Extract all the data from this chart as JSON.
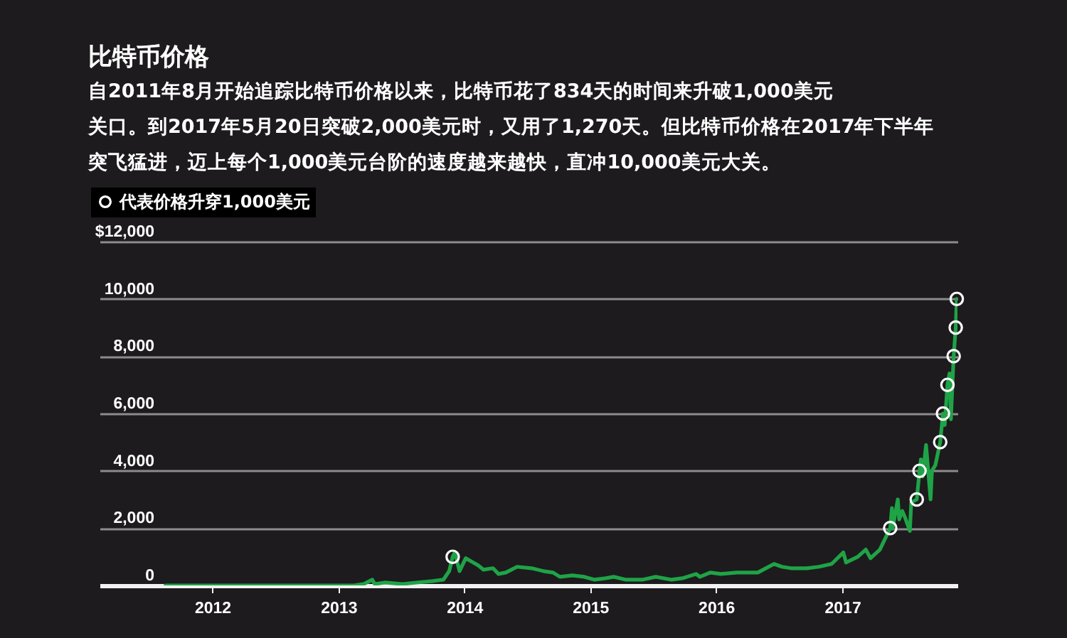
{
  "chart_data": {
    "type": "line",
    "title": "比特币价格",
    "subtitle": [
      "自2011年8月开始追踪比特币价格以来，比特币花了834天的时间来升破1,000美元",
      "关口。到2017年5月20日突破2,000美元时，又用了1,270天。但比特币价格在2017年下半年",
      "突飞猛进，迈上每个1,000美元台阶的速度越来越快，直冲10,000美元大关。"
    ],
    "xlim": [
      "2011-02-08",
      "2017-12-01"
    ],
    "xticks": [
      "2012",
      "2013",
      "2014",
      "2015",
      "2016",
      "2017"
    ],
    "ylim": [
      0,
      12000
    ],
    "yticks": [
      0,
      {
        "value": 2000,
        "label": "2,000"
      },
      {
        "value": 4000,
        "label": "4,000"
      },
      {
        "value": 6000,
        "label": "6,000"
      },
      {
        "value": 8000,
        "label": "8,000"
      },
      {
        "value": 10000,
        "label": "10,000"
      },
      {
        "value": 12000,
        "label": "$12,000"
      }
    ],
    "grid": "y",
    "legend": "top left",
    "series": [
      {
        "color": "#1fa347",
        "line_style": "solid",
        "x": [
          "2011-08-18",
          "2011-09-15",
          "2011-11-15",
          "2012-01-15",
          "2012-04-15",
          "2012-06-15",
          "2012-08-15",
          "2012-10-15",
          "2012-12-15",
          "2013-02-15",
          "2013-03-15",
          "2013-04-09",
          "2013-04-16",
          "2013-05-15",
          "2013-07-05",
          "2013-08-15",
          "2013-10-01",
          "2013-11-01",
          "2013-11-18",
          "2013-11-28",
          "2013-12-04",
          "2013-12-18",
          "2014-01-05",
          "2014-02-10",
          "2014-02-25",
          "2014-03-25",
          "2014-04-10",
          "2014-05-01",
          "2014-06-03",
          "2014-07-15",
          "2014-08-18",
          "2014-09-15",
          "2014-10-05",
          "2014-11-10",
          "2014-12-15",
          "2015-01-14",
          "2015-02-15",
          "2015-03-10",
          "2015-04-15",
          "2015-06-01",
          "2015-07-10",
          "2015-08-25",
          "2015-09-25",
          "2015-11-04",
          "2015-11-15",
          "2015-12-15",
          "2016-01-15",
          "2016-03-01",
          "2016-05-01",
          "2016-06-17",
          "2016-07-10",
          "2016-08-05",
          "2016-09-20",
          "2016-10-25",
          "2016-12-01",
          "2017-01-04",
          "2017-01-12",
          "2017-02-15",
          "2017-03-10",
          "2017-03-24",
          "2017-04-20",
          "2017-05-20",
          "2017-05-25",
          "2017-05-27",
          "2017-06-11",
          "2017-06-15",
          "2017-06-24",
          "2017-07-01",
          "2017-07-16",
          "2017-07-20",
          "2017-08-05",
          "2017-08-13",
          "2017-08-17",
          "2017-08-22",
          "2017-09-01",
          "2017-09-14",
          "2017-09-18",
          "2017-09-28",
          "2017-10-12",
          "2017-10-20",
          "2017-10-25",
          "2017-11-02",
          "2017-11-08",
          "2017-11-12",
          "2017-11-20",
          "2017-11-26",
          "2017-11-29"
        ],
        "values": [
          0,
          0,
          0,
          0,
          0,
          0,
          0,
          0,
          0,
          0,
          50,
          200,
          50,
          100,
          50,
          100,
          150,
          200,
          500,
          1000,
          1150,
          500,
          950,
          700,
          550,
          600,
          400,
          450,
          650,
          600,
          500,
          450,
          300,
          350,
          300,
          200,
          250,
          300,
          200,
          200,
          300,
          200,
          250,
          400,
          300,
          450,
          400,
          450,
          450,
          750,
          650,
          600,
          600,
          650,
          750,
          1150,
          800,
          1000,
          1250,
          950,
          1250,
          2000,
          2700,
          2000,
          3000,
          2300,
          2600,
          2400,
          1900,
          2900,
          3000,
          4000,
          4400,
          3800,
          4900,
          3000,
          4000,
          4200,
          5000,
          6000,
          5600,
          7000,
          7400,
          5800,
          8000,
          9000,
          10000
        ]
      },
      {
        "type": "scatter",
        "name": "代表价格升穿1,000美元",
        "color": "#ffffff",
        "marker": "circle",
        "x": [
          "2013-11-28",
          "2017-05-20",
          "2017-08-05",
          "2017-08-13",
          "2017-10-12",
          "2017-10-20",
          "2017-11-02",
          "2017-11-20",
          "2017-11-26",
          "2017-11-29"
        ],
        "values": [
          1000,
          2000,
          3000,
          4000,
          5000,
          6000,
          7000,
          8000,
          9000,
          10000
        ]
      }
    ]
  }
}
